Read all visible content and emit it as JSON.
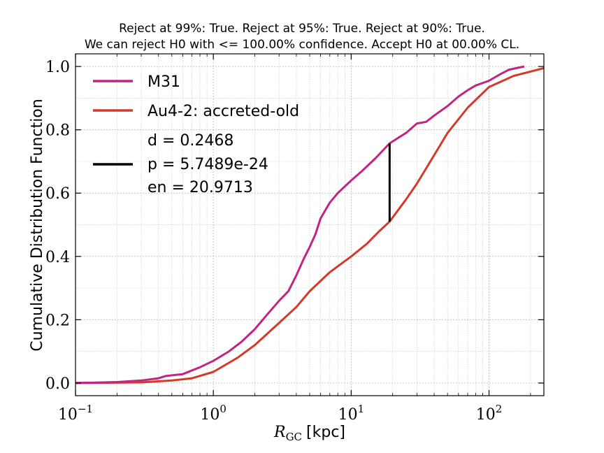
{
  "title_lines": [
    "Reject at 99%: True. Reject at 95%: True. Reject at 90%: True.",
    "We can reject H0 with <= 100.00% confidence. Accept H0 at 00.00% CL."
  ],
  "chart_data": {
    "type": "line",
    "xscale": "log",
    "xlim": [
      0.1,
      250
    ],
    "ylim": [
      -0.04,
      1.04
    ],
    "xlabel_math": "R",
    "xlabel_sub": "GC",
    "xlabel_unit": "[kpc]",
    "ylabel": "Cumulative Distribution Function",
    "grid": true,
    "legend_position": "upper-left",
    "x_ticks": [
      {
        "value": 0.1,
        "base": "10",
        "exp": "−1"
      },
      {
        "value": 1,
        "base": "10",
        "exp": "0"
      },
      {
        "value": 10,
        "base": "10",
        "exp": "1"
      },
      {
        "value": 100,
        "base": "10",
        "exp": "2"
      }
    ],
    "y_ticks": [
      {
        "value": 0.0,
        "label": "0.0"
      },
      {
        "value": 0.2,
        "label": "0.2"
      },
      {
        "value": 0.4,
        "label": "0.4"
      },
      {
        "value": 0.6,
        "label": "0.6"
      },
      {
        "value": 0.8,
        "label": "0.8"
      },
      {
        "value": 1.0,
        "label": "1.0"
      }
    ],
    "series": [
      {
        "name": "M31",
        "color": "#c0267f",
        "x": [
          0.1,
          0.2,
          0.3,
          0.4,
          0.45,
          0.6,
          0.8,
          1.0,
          1.3,
          1.6,
          2.0,
          2.5,
          3.0,
          3.5,
          4.0,
          4.5,
          5.0,
          5.5,
          6.0,
          7.0,
          8.0,
          10.0,
          12.0,
          15.0,
          19.0,
          22.0,
          25.0,
          30.0,
          35.0,
          40.0,
          50.0,
          60.0,
          70.0,
          80.0,
          100.0,
          120.0,
          140.0,
          180.0
        ],
        "y": [
          0.0,
          0.003,
          0.008,
          0.015,
          0.022,
          0.028,
          0.05,
          0.07,
          0.1,
          0.13,
          0.17,
          0.22,
          0.26,
          0.29,
          0.34,
          0.39,
          0.43,
          0.47,
          0.52,
          0.57,
          0.6,
          0.64,
          0.67,
          0.71,
          0.757,
          0.775,
          0.79,
          0.82,
          0.825,
          0.845,
          0.875,
          0.905,
          0.925,
          0.94,
          0.955,
          0.975,
          0.99,
          1.0
        ]
      },
      {
        "name": "Au4-2: accreted-old",
        "color": "#d23a2c",
        "x": [
          0.1,
          0.3,
          0.5,
          0.7,
          1.0,
          1.5,
          2.0,
          3.0,
          4.0,
          5.0,
          7.0,
          10.0,
          13.0,
          16.0,
          19.0,
          25.0,
          30.0,
          40.0,
          50.0,
          70.0,
          100.0,
          150.0,
          250.0
        ],
        "y": [
          0.0,
          0.002,
          0.008,
          0.015,
          0.035,
          0.08,
          0.12,
          0.19,
          0.24,
          0.29,
          0.35,
          0.4,
          0.44,
          0.48,
          0.51,
          0.58,
          0.63,
          0.72,
          0.79,
          0.87,
          0.935,
          0.97,
          0.995
        ]
      }
    ],
    "ks_line": {
      "name": "ks-distance",
      "color": "#000000",
      "x": 19.0,
      "y0": 0.51,
      "y1": 0.757
    },
    "stats": {
      "d": "d = 0.2468",
      "p": "p = 5.7489e-24",
      "en": "en = 20.9713"
    }
  }
}
